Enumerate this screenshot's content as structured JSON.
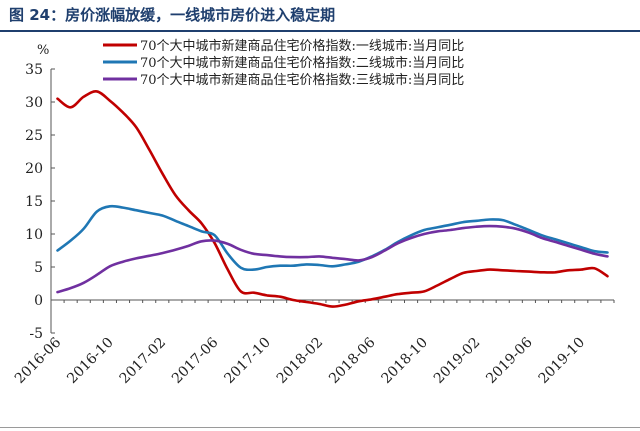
{
  "figure": {
    "title": "图 24：房价涨幅放缓，一线城市房价进入稳定期"
  },
  "chart_data": {
    "type": "line",
    "ylabel": "%",
    "ylim": [
      -5,
      35
    ],
    "yticks": [
      -5,
      0,
      5,
      10,
      15,
      20,
      25,
      30,
      35
    ],
    "xtick_labels": [
      "2016-06",
      "2016-10",
      "2017-02",
      "2017-06",
      "2017-10",
      "2018-02",
      "2018-06",
      "2018-10",
      "2019-02",
      "2019-06",
      "2019-10"
    ],
    "x": [
      "2016-06",
      "2016-07",
      "2016-08",
      "2016-09",
      "2016-10",
      "2016-11",
      "2016-12",
      "2017-01",
      "2017-02",
      "2017-03",
      "2017-04",
      "2017-05",
      "2017-06",
      "2017-07",
      "2017-08",
      "2017-09",
      "2017-10",
      "2017-11",
      "2017-12",
      "2018-01",
      "2018-02",
      "2018-03",
      "2018-04",
      "2018-05",
      "2018-06",
      "2018-07",
      "2018-08",
      "2018-09",
      "2018-10",
      "2018-11",
      "2018-12",
      "2019-01",
      "2019-02",
      "2019-03",
      "2019-04",
      "2019-05",
      "2019-06",
      "2019-07",
      "2019-08",
      "2019-09",
      "2019-10",
      "2019-11",
      "2019-12"
    ],
    "series": [
      {
        "name": "70个大中城市新建商品住宅价格指数:一线城市:当月同比",
        "color": "#C00000",
        "values": [
          30.5,
          29.2,
          30.8,
          31.6,
          30.2,
          28.4,
          26.2,
          22.8,
          19.2,
          15.9,
          13.6,
          11.6,
          8.6,
          4.6,
          1.3,
          1.1,
          0.7,
          0.5,
          0.0,
          -0.3,
          -0.6,
          -1.0,
          -0.7,
          -0.2,
          0.1,
          0.5,
          0.9,
          1.1,
          1.3,
          2.2,
          3.2,
          4.1,
          4.4,
          4.6,
          4.5,
          4.4,
          4.3,
          4.2,
          4.2,
          4.5,
          4.6,
          4.8,
          3.6
        ]
      },
      {
        "name": "70个大中城市新建商品住宅价格指数:二线城市:当月同比",
        "color": "#1F77B4",
        "values": [
          7.5,
          9.0,
          10.8,
          13.4,
          14.2,
          14.0,
          13.6,
          13.2,
          12.8,
          12.0,
          11.2,
          10.4,
          9.8,
          7.0,
          4.9,
          4.6,
          5.0,
          5.2,
          5.2,
          5.4,
          5.3,
          5.1,
          5.4,
          5.8,
          6.6,
          7.6,
          8.8,
          9.8,
          10.6,
          11.0,
          11.4,
          11.8,
          12.0,
          12.2,
          12.1,
          11.4,
          10.6,
          9.8,
          9.2,
          8.6,
          8.0,
          7.4,
          7.2
        ]
      },
      {
        "name": "70个大中城市新建商品住宅价格指数:三线城市:当月同比",
        "color": "#7030A0",
        "values": [
          1.2,
          1.8,
          2.6,
          3.8,
          5.1,
          5.8,
          6.3,
          6.7,
          7.1,
          7.6,
          8.2,
          8.9,
          9.0,
          8.5,
          7.6,
          7.0,
          6.8,
          6.6,
          6.5,
          6.5,
          6.6,
          6.4,
          6.2,
          6.0,
          6.5,
          7.5,
          8.6,
          9.4,
          10.0,
          10.4,
          10.6,
          10.9,
          11.1,
          11.2,
          11.1,
          10.8,
          10.2,
          9.4,
          8.8,
          8.2,
          7.6,
          7.0,
          6.6
        ]
      }
    ]
  }
}
